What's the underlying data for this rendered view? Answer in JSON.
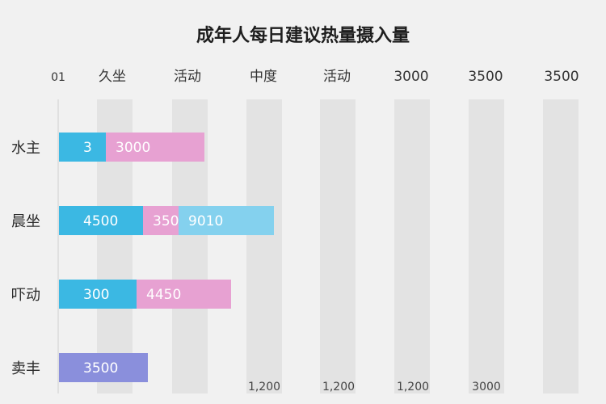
{
  "chart_data": {
    "type": "bar",
    "stacked": true,
    "orientation": "horizontal",
    "title": "成年人每日建议热量摄入量",
    "top_labels": [
      "01",
      "久坐",
      "活动",
      "中度",
      "活动",
      "3000",
      "3500",
      "3500"
    ],
    "bottom_labels": [
      "1,200",
      "1,200",
      "1,200",
      "3000"
    ],
    "categories": [
      "水主",
      "晨坐",
      "吓动",
      "卖丰"
    ],
    "segments": [
      [
        {
          "value": 3,
          "label": "3",
          "color": "#3bb8e3"
        },
        {
          "value": 3000,
          "label": "3000",
          "color": "#e7a1d2"
        }
      ],
      [
        {
          "value": 4500,
          "label": "4500",
          "color": "#3bb8e3"
        },
        {
          "value": 350,
          "label": "350",
          "color": "#e7a1d2"
        },
        {
          "value": 9010,
          "label": "9010",
          "color": "#84d1ee"
        }
      ],
      [
        {
          "value": 300,
          "label": "300",
          "color": "#3bb8e3"
        },
        {
          "value": 4450,
          "label": "4450",
          "color": "#e7a1d2"
        }
      ],
      [
        {
          "value": 3500,
          "label": "3500",
          "color": "#8a8fdc"
        }
      ]
    ],
    "grid": true
  }
}
